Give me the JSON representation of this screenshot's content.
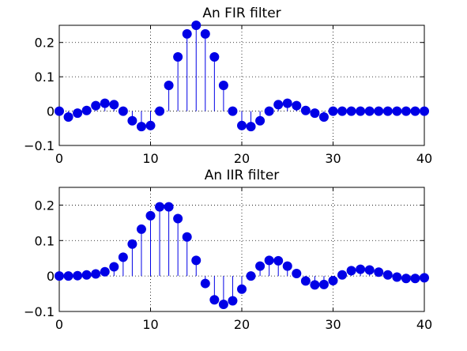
{
  "chart_data": [
    {
      "type": "stem",
      "title": "An FIR filter",
      "xlabel": "",
      "ylabel": "",
      "xlim": [
        0,
        40
      ],
      "ylim": [
        -0.1,
        0.25
      ],
      "xticks": [
        0,
        10,
        20,
        30,
        40
      ],
      "yticks": [
        0.2,
        0.1,
        0,
        -0.1
      ],
      "xtick_labels": [
        "0",
        "10",
        "20",
        "30",
        "40"
      ],
      "ytick_labels": [
        "0.2",
        "0.1",
        "0",
        "−0.1"
      ],
      "grid": true,
      "color": "#0000e6",
      "x": [
        0,
        1,
        2,
        3,
        4,
        5,
        6,
        7,
        8,
        9,
        10,
        11,
        12,
        13,
        14,
        15,
        16,
        17,
        18,
        19,
        20,
        21,
        22,
        23,
        24,
        25,
        26,
        27,
        28,
        29,
        30,
        31,
        32,
        33,
        34,
        35,
        36,
        37,
        38,
        39,
        40
      ],
      "values": [
        0.0,
        -0.017,
        -0.006,
        0.002,
        0.016,
        0.023,
        0.019,
        0.0,
        -0.028,
        -0.045,
        -0.042,
        0.0,
        0.075,
        0.158,
        0.225,
        0.25,
        0.225,
        0.158,
        0.075,
        0.0,
        -0.042,
        -0.045,
        -0.028,
        0.0,
        0.019,
        0.023,
        0.016,
        0.002,
        -0.006,
        -0.017,
        0.0,
        0.0,
        0.0,
        0.0,
        0.0,
        0.0,
        0.0,
        0.0,
        0.0,
        0.0,
        0.0
      ]
    },
    {
      "type": "stem",
      "title": "An IIR filter",
      "xlabel": "",
      "ylabel": "",
      "xlim": [
        0,
        40
      ],
      "ylim": [
        -0.1,
        0.25
      ],
      "xticks": [
        0,
        10,
        20,
        30,
        40
      ],
      "yticks": [
        0.2,
        0.1,
        0,
        -0.1
      ],
      "xtick_labels": [
        "0",
        "10",
        "20",
        "30",
        "40"
      ],
      "ytick_labels": [
        "0.2",
        "0.1",
        "0",
        "−0.1"
      ],
      "grid": true,
      "color": "#0000e6",
      "x": [
        0,
        1,
        2,
        3,
        4,
        5,
        6,
        7,
        8,
        9,
        10,
        11,
        12,
        13,
        14,
        15,
        16,
        17,
        18,
        19,
        20,
        21,
        22,
        23,
        24,
        25,
        26,
        27,
        28,
        29,
        30,
        31,
        32,
        33,
        34,
        35,
        36,
        37,
        38,
        39,
        40
      ],
      "values": [
        0.0,
        0.0,
        0.001,
        0.003,
        0.006,
        0.012,
        0.026,
        0.053,
        0.09,
        0.132,
        0.17,
        0.195,
        0.195,
        0.162,
        0.11,
        0.044,
        -0.021,
        -0.067,
        -0.08,
        -0.07,
        -0.037,
        0.0,
        0.028,
        0.044,
        0.043,
        0.028,
        0.007,
        -0.014,
        -0.025,
        -0.024,
        -0.013,
        0.003,
        0.015,
        0.019,
        0.017,
        0.011,
        0.003,
        -0.003,
        -0.007,
        -0.007,
        -0.005
      ]
    }
  ]
}
